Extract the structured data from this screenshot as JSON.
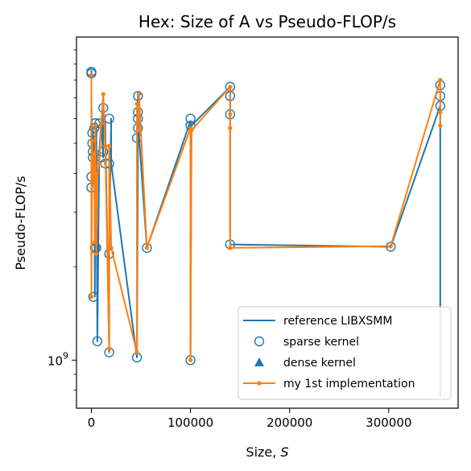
{
  "chart_data": {
    "type": "line",
    "title": "Hex: Size of A vs Pseudo-FLOP/s",
    "xlabel": "Size, ",
    "xlabel_var": "S",
    "ylabel": "Pseudo-FLOP/s",
    "yscale": "log",
    "xlim": [
      -15000,
      370000
    ],
    "ylim": [
      700000000,
      11000000000
    ],
    "xticks": [
      {
        "value": 0,
        "label": "0"
      },
      {
        "value": 100000,
        "label": "100000"
      },
      {
        "value": 200000,
        "label": "200000"
      },
      {
        "value": 300000,
        "label": "300000"
      }
    ],
    "yticks_major": [
      {
        "value": 1000000000,
        "label": "10",
        "sup": "9"
      }
    ],
    "yticks_minor": [
      800000000,
      900000000,
      2000000000,
      3000000000,
      4000000000,
      5000000000,
      6000000000,
      7000000000,
      8000000000,
      9000000000,
      10000000000
    ],
    "legend_position": "lower-right",
    "colors": {
      "reference": "#1f77b4",
      "mine": "#ff7f0e"
    },
    "series": [
      {
        "name": "reference LIBXSMM",
        "kind": "line",
        "color": "#1f77b4",
        "points": [
          [
            0,
            8600000000
          ],
          [
            0,
            6900000000
          ],
          [
            1000,
            3900000000
          ],
          [
            1000,
            3600000000
          ],
          [
            1500,
            5500000000
          ],
          [
            2000,
            5200000000
          ],
          [
            2500,
            4900000000
          ],
          [
            3000,
            4700000000
          ],
          [
            3000,
            5000000000
          ],
          [
            3500,
            1600000000
          ],
          [
            4000,
            5700000000
          ],
          [
            4500,
            2300000000
          ],
          [
            5000,
            5800000000
          ],
          [
            6000,
            1150000000
          ],
          [
            8000,
            4700000000
          ],
          [
            10000,
            5900000000
          ],
          [
            12000,
            4500000000
          ],
          [
            12000,
            6500000000
          ],
          [
            14000,
            5800000000
          ],
          [
            18000,
            1060000000
          ],
          [
            18000,
            2200000000
          ],
          [
            20000,
            6000000000
          ],
          [
            20000,
            4300000000
          ],
          [
            46000,
            1020000000
          ],
          [
            47000,
            5000000000
          ],
          [
            47000,
            7100000000
          ],
          [
            48000,
            5300000000
          ],
          [
            56000,
            2300000000
          ],
          [
            100000,
            5900000000
          ],
          [
            100000,
            1000000000
          ],
          [
            101000,
            5700000000
          ],
          [
            140000,
            7600000000
          ],
          [
            140000,
            6300000000
          ],
          [
            140000,
            2360000000
          ],
          [
            302000,
            2320000000
          ],
          [
            352000,
            6600000000
          ],
          [
            352000,
            760000000
          ]
        ]
      },
      {
        "name": "sparse kernel",
        "kind": "marker-open-circle",
        "color": "#1f77b4",
        "points": [
          [
            0,
            8500000000
          ],
          [
            0,
            8400000000
          ],
          [
            0,
            3900000000
          ],
          [
            0,
            3600000000
          ],
          [
            1000,
            5400000000
          ],
          [
            1000,
            5000000000
          ],
          [
            1500,
            4700000000
          ],
          [
            1500,
            4500000000
          ],
          [
            2000,
            1600000000
          ],
          [
            3000,
            5600000000
          ],
          [
            3500,
            2300000000
          ],
          [
            4000,
            5800000000
          ],
          [
            5000,
            2300000000
          ],
          [
            6000,
            1150000000
          ],
          [
            8000,
            5800000000
          ],
          [
            10000,
            4500000000
          ],
          [
            12000,
            6500000000
          ],
          [
            12000,
            4700000000
          ],
          [
            14000,
            4300000000
          ],
          [
            18000,
            6000000000
          ],
          [
            18000,
            4300000000
          ],
          [
            18000,
            2200000000
          ],
          [
            18000,
            1060000000
          ],
          [
            46000,
            1020000000
          ],
          [
            46000,
            5200000000
          ],
          [
            47000,
            7100000000
          ],
          [
            47000,
            6300000000
          ],
          [
            47000,
            6000000000
          ],
          [
            47000,
            5600000000
          ],
          [
            56000,
            2300000000
          ],
          [
            100000,
            6000000000
          ],
          [
            100000,
            5700000000
          ],
          [
            100000,
            1000000000
          ],
          [
            140000,
            7600000000
          ],
          [
            140000,
            7100000000
          ],
          [
            140000,
            6200000000
          ],
          [
            140000,
            2360000000
          ],
          [
            302000,
            2320000000
          ],
          [
            352000,
            7700000000
          ],
          [
            352000,
            7100000000
          ],
          [
            352000,
            6600000000
          ]
        ]
      },
      {
        "name": "dense kernel",
        "kind": "marker-triangle",
        "color": "#1f77b4",
        "points": []
      },
      {
        "name": "my 1st implementation",
        "kind": "line-dot",
        "color": "#ff7f0e",
        "points": [
          [
            0,
            8300000000
          ],
          [
            0,
            1600000000
          ],
          [
            1000,
            5100000000
          ],
          [
            1500,
            3900000000
          ],
          [
            2000,
            4500000000
          ],
          [
            2500,
            3800000000
          ],
          [
            3000,
            4600000000
          ],
          [
            3500,
            2400000000
          ],
          [
            4000,
            5700000000
          ],
          [
            5000,
            2200000000
          ],
          [
            6000,
            4000000000
          ],
          [
            8000,
            4300000000
          ],
          [
            10000,
            5800000000
          ],
          [
            12000,
            7200000000
          ],
          [
            14000,
            4900000000
          ],
          [
            18000,
            1090000000
          ],
          [
            18000,
            4900000000
          ],
          [
            20000,
            2300000000
          ],
          [
            46000,
            1060000000
          ],
          [
            46000,
            6700000000
          ],
          [
            47000,
            5500000000
          ],
          [
            48000,
            7200000000
          ],
          [
            56000,
            2300000000
          ],
          [
            100000,
            5600000000
          ],
          [
            100000,
            1000000000
          ],
          [
            101000,
            5500000000
          ],
          [
            140000,
            7600000000
          ],
          [
            140000,
            6200000000
          ],
          [
            140000,
            5600000000
          ],
          [
            140000,
            2300000000
          ],
          [
            302000,
            2330000000
          ],
          [
            352000,
            8000000000
          ],
          [
            352000,
            6300000000
          ],
          [
            352000,
            5700000000
          ]
        ]
      }
    ]
  }
}
